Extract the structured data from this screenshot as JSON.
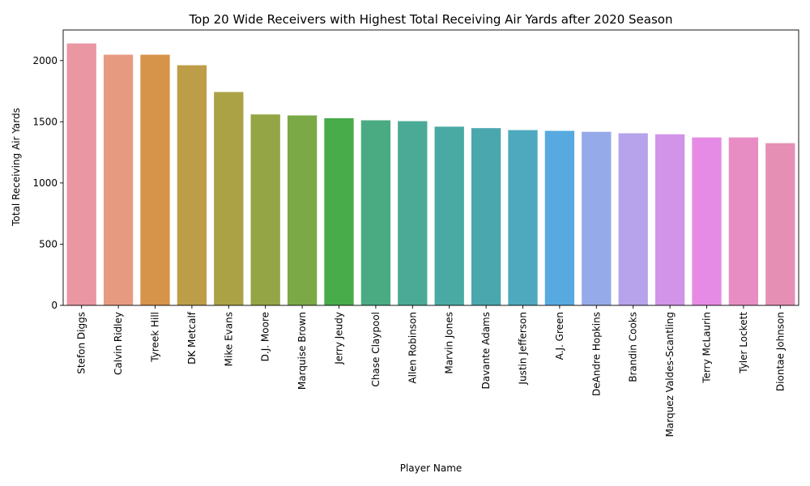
{
  "chart_data": {
    "type": "bar",
    "title": "Top 20 Wide Receivers with Highest Total Receiving Air Yards after 2020 Season",
    "xlabel": "Player Name",
    "ylabel": "Total Receiving Air Yards",
    "ylim": [
      0,
      2250
    ],
    "yticks": [
      0,
      500,
      1000,
      1500,
      2000
    ],
    "grid": false,
    "legend": "none",
    "categories": [
      "Stefon Diggs",
      "Calvin Ridley",
      "Tyreek Hill",
      "DK Metcalf",
      "Mike Evans",
      "D.J. Moore",
      "Marquise Brown",
      "Jerry Jeudy",
      "Chase Claypool",
      "Allen Robinson",
      "Marvin Jones",
      "Davante Adams",
      "Justin Jefferson",
      "A.J. Green",
      "DeAndre Hopkins",
      "Brandin Cooks",
      "Marquez Valdes-Scantling",
      "Terry McLaurin",
      "Tyler Lockett",
      "Diontae Johnson"
    ],
    "values": [
      2140,
      2048,
      2048,
      1962,
      1743,
      1560,
      1552,
      1529,
      1512,
      1505,
      1460,
      1448,
      1432,
      1426,
      1418,
      1406,
      1398,
      1372,
      1372,
      1325
    ],
    "colors": [
      "#ea96a3",
      "#e69b80",
      "#d6944a",
      "#bd9d48",
      "#aba245",
      "#94a545",
      "#7ba946",
      "#47ac49",
      "#4aab83",
      "#4aaa95",
      "#49aaa4",
      "#4aa7ae",
      "#4ea9bf",
      "#57aae0",
      "#95abe9",
      "#b6a3ec",
      "#d194e9",
      "#e68be5",
      "#e88dc4",
      "#e68fb5"
    ]
  }
}
